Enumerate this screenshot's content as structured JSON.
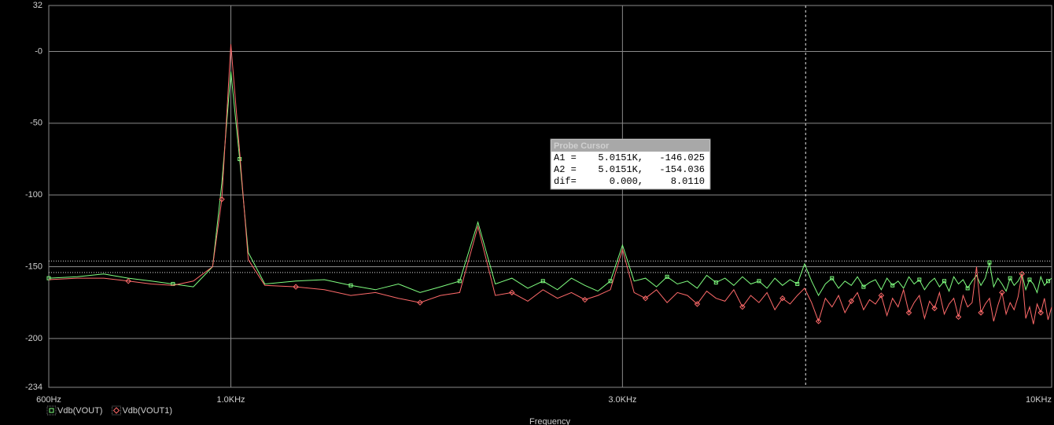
{
  "chart_data": {
    "type": "line",
    "x_label": "Frequency",
    "xscale": "log",
    "grid": true,
    "xlim": [
      600,
      10000
    ],
    "xticks": [
      {
        "value": 600,
        "label": "600Hz"
      },
      {
        "value": 1000,
        "label": "1.0KHz"
      },
      {
        "value": 3000,
        "label": "3.0KHz"
      },
      {
        "value": 10000,
        "label": "10KHz"
      }
    ],
    "ylim": [
      -234,
      32
    ],
    "yticks": [
      32,
      {
        "value": 0,
        "label": "-0"
      },
      -50,
      -100,
      -150,
      -200,
      -234
    ],
    "x": [
      600,
      650,
      700,
      750,
      800,
      850,
      900,
      950,
      975,
      1000,
      1025,
      1050,
      1100,
      1200,
      1300,
      1400,
      1500,
      1600,
      1700,
      1800,
      1900,
      2000,
      2100,
      2200,
      2300,
      2400,
      2500,
      2600,
      2700,
      2800,
      2900,
      3000,
      3100,
      3200,
      3300,
      3400,
      3500,
      3600,
      3700,
      3800,
      3900,
      4000,
      4100,
      4200,
      4300,
      4400,
      4500,
      4600,
      4700,
      4800,
      4900,
      5000,
      5100,
      5200,
      5300,
      5400,
      5500,
      5600,
      5700,
      5800,
      5900,
      6000,
      6100,
      6200,
      6300,
      6400,
      6500,
      6600,
      6700,
      6800,
      6900,
      7000,
      7100,
      7200,
      7300,
      7400,
      7500,
      7600,
      7700,
      7800,
      7900,
      8000,
      8100,
      8200,
      8300,
      8400,
      8500,
      8600,
      8700,
      8800,
      8900,
      9000,
      9100,
      9200,
      9300,
      9400,
      9500,
      9600,
      9700,
      9800,
      9900,
      10000
    ],
    "series": [
      {
        "name": "Vdb(VOUT)",
        "color": "#80ff80",
        "marker": "square",
        "values": [
          -158,
          -157,
          -155,
          -158,
          -160,
          -162,
          -164,
          -150,
          -92,
          -14,
          -75,
          -140,
          -162,
          -160,
          -159,
          -163,
          -166,
          -162,
          -168,
          -164,
          -160,
          -119,
          -162,
          -158,
          -165,
          -160,
          -166,
          -158,
          -163,
          -167,
          -160,
          -135,
          -160,
          -158,
          -164,
          -157,
          -162,
          -160,
          -165,
          -156,
          -161,
          -158,
          -163,
          -157,
          -162,
          -160,
          -165,
          -158,
          -163,
          -159,
          -162,
          -148,
          -160,
          -170,
          -162,
          -158,
          -165,
          -160,
          -163,
          -157,
          -164,
          -161,
          -159,
          -166,
          -158,
          -163,
          -160,
          -165,
          -157,
          -162,
          -159,
          -166,
          -161,
          -158,
          -164,
          -160,
          -167,
          -157,
          -162,
          -159,
          -165,
          -160,
          -156,
          -163,
          -158,
          -147,
          -164,
          -158,
          -162,
          -167,
          -158,
          -163,
          -160,
          -155,
          -166,
          -159,
          -162,
          -168,
          -157,
          -163,
          -160,
          -158
        ]
      },
      {
        "name": "Vdb(VOUT1)",
        "color": "#ff6a6a",
        "marker": "diamond",
        "values": [
          -159,
          -158,
          -158,
          -160,
          -162,
          -163,
          -160,
          -150,
          -103,
          5,
          -70,
          -145,
          -163,
          -164,
          -166,
          -170,
          -168,
          -172,
          -175,
          -170,
          -168,
          -122,
          -170,
          -168,
          -174,
          -166,
          -172,
          -168,
          -173,
          -170,
          -166,
          -138,
          -168,
          -172,
          -166,
          -175,
          -168,
          -170,
          -176,
          -167,
          -172,
          -174,
          -166,
          -178,
          -170,
          -175,
          -168,
          -180,
          -172,
          -176,
          -170,
          -165,
          -175,
          -188,
          -172,
          -178,
          -170,
          -182,
          -174,
          -168,
          -180,
          -173,
          -176,
          -170,
          -184,
          -172,
          -178,
          -166,
          -182,
          -175,
          -170,
          -186,
          -174,
          -179,
          -168,
          -183,
          -176,
          -172,
          -185,
          -170,
          -178,
          -175,
          -150,
          -182,
          -176,
          -172,
          -188,
          -177,
          -168,
          -183,
          -175,
          -180,
          -171,
          -155,
          -186,
          -178,
          -190,
          -176,
          -182,
          -172,
          -187,
          -178
        ]
      }
    ],
    "cursor": {
      "title": "Probe Cursor",
      "rows": [
        {
          "name": "A1 =",
          "x": {
            "value": 5015.1,
            "label": "5.0151K,"
          },
          "y": -146.025
        },
        {
          "name": "A2 =",
          "x": {
            "value": 5015.1,
            "label": "5.0151K,"
          },
          "y": -154.036
        },
        {
          "name": "dif=",
          "x": {
            "value": 0,
            "label": "0.000,"
          },
          "y": {
            "value": 8.011,
            "label": "8.0110"
          }
        }
      ]
    }
  }
}
